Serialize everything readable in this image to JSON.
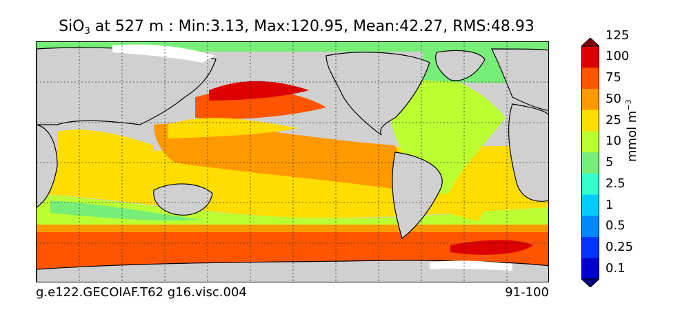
{
  "title": {
    "variable": "SiO",
    "subscript": "3",
    "rest": " at 527 m : Min:3.13, Max:120.95, Mean:42.27, RMS:48.93"
  },
  "footer": {
    "case_name": "g.e122.GECOIAF.T62 g16.visc.004",
    "years": "91-100"
  },
  "colorbar": {
    "unit": "mmol m",
    "unit_exponent": "−3",
    "levels": [
      "0.1",
      "0.25",
      "0.5",
      "1",
      "2.5",
      "5",
      "10",
      "25",
      "50",
      "75",
      "100",
      "125"
    ],
    "colors": [
      "#00007f",
      "#0000d0",
      "#0033ff",
      "#0088ff",
      "#00ccff",
      "#33ffcc",
      "#77ee77",
      "#bbff33",
      "#ffdd00",
      "#ff9900",
      "#ff5500",
      "#dd0000",
      "#800000"
    ]
  },
  "map_colors": {
    "land": "#d0d0d0",
    "sea_ice": "#ffffff"
  }
}
